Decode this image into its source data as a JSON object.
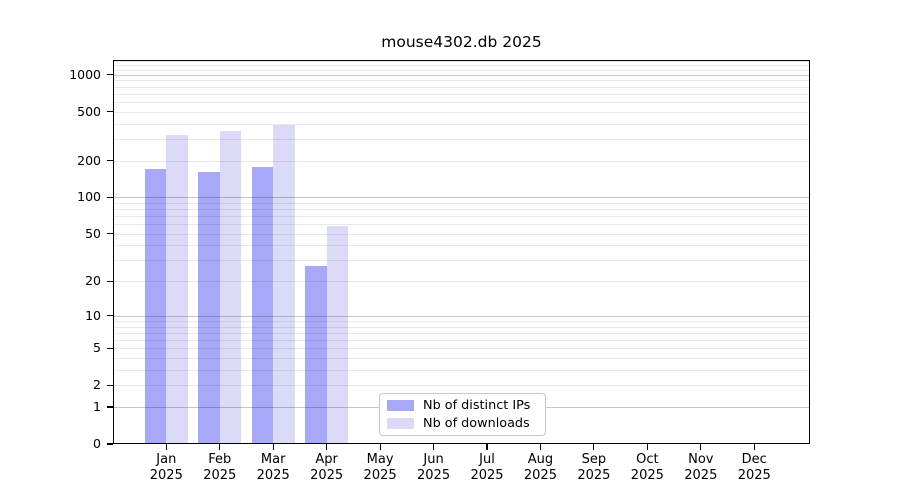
{
  "title": "mouse4302.db 2025",
  "chart_data": {
    "type": "bar",
    "title": "mouse4302.db 2025",
    "categories": [
      "Jan 2025",
      "Feb 2025",
      "Mar 2025",
      "Apr 2025",
      "May 2025",
      "Jun 2025",
      "Jul 2025",
      "Aug 2025",
      "Sep 2025",
      "Oct 2025",
      "Nov 2025",
      "Dec 2025"
    ],
    "series": [
      {
        "name": "Nb of distinct IPs",
        "key": "distinct-ips",
        "color": "#a8a8f8",
        "values": [
          170,
          162,
          176,
          27,
          null,
          null,
          null,
          null,
          null,
          null,
          null,
          null
        ]
      },
      {
        "name": "Nb of downloads",
        "key": "downloads",
        "color": "#dbdbf8",
        "values": [
          320,
          345,
          388,
          58,
          null,
          null,
          null,
          null,
          null,
          null,
          null,
          null
        ]
      }
    ],
    "xlabel": "",
    "ylabel": "",
    "yscale": "log10(value+1)",
    "ylim": [
      0,
      1317
    ],
    "yticks": [
      0,
      1,
      2,
      5,
      10,
      20,
      50,
      100,
      200,
      500,
      1000
    ],
    "grid": {
      "orientation": "horizontal",
      "major": [
        1,
        10,
        100,
        1000
      ],
      "minor": [
        2,
        3,
        4,
        5,
        6,
        7,
        8,
        9,
        20,
        30,
        40,
        50,
        60,
        70,
        80,
        90,
        200,
        300,
        400,
        500,
        600,
        700,
        800,
        900,
        1100,
        1200,
        1300
      ]
    },
    "legend_position": "inside-bottom-center"
  },
  "x_axis": {
    "months": [
      "Jan",
      "Feb",
      "Mar",
      "Apr",
      "May",
      "Jun",
      "Jul",
      "Aug",
      "Sep",
      "Oct",
      "Nov",
      "Dec"
    ],
    "year": "2025"
  },
  "legend": {
    "items": [
      {
        "label": "Nb of distinct IPs",
        "color": "#a8a8f8"
      },
      {
        "label": "Nb of downloads",
        "color": "#dbdbf8"
      }
    ]
  }
}
